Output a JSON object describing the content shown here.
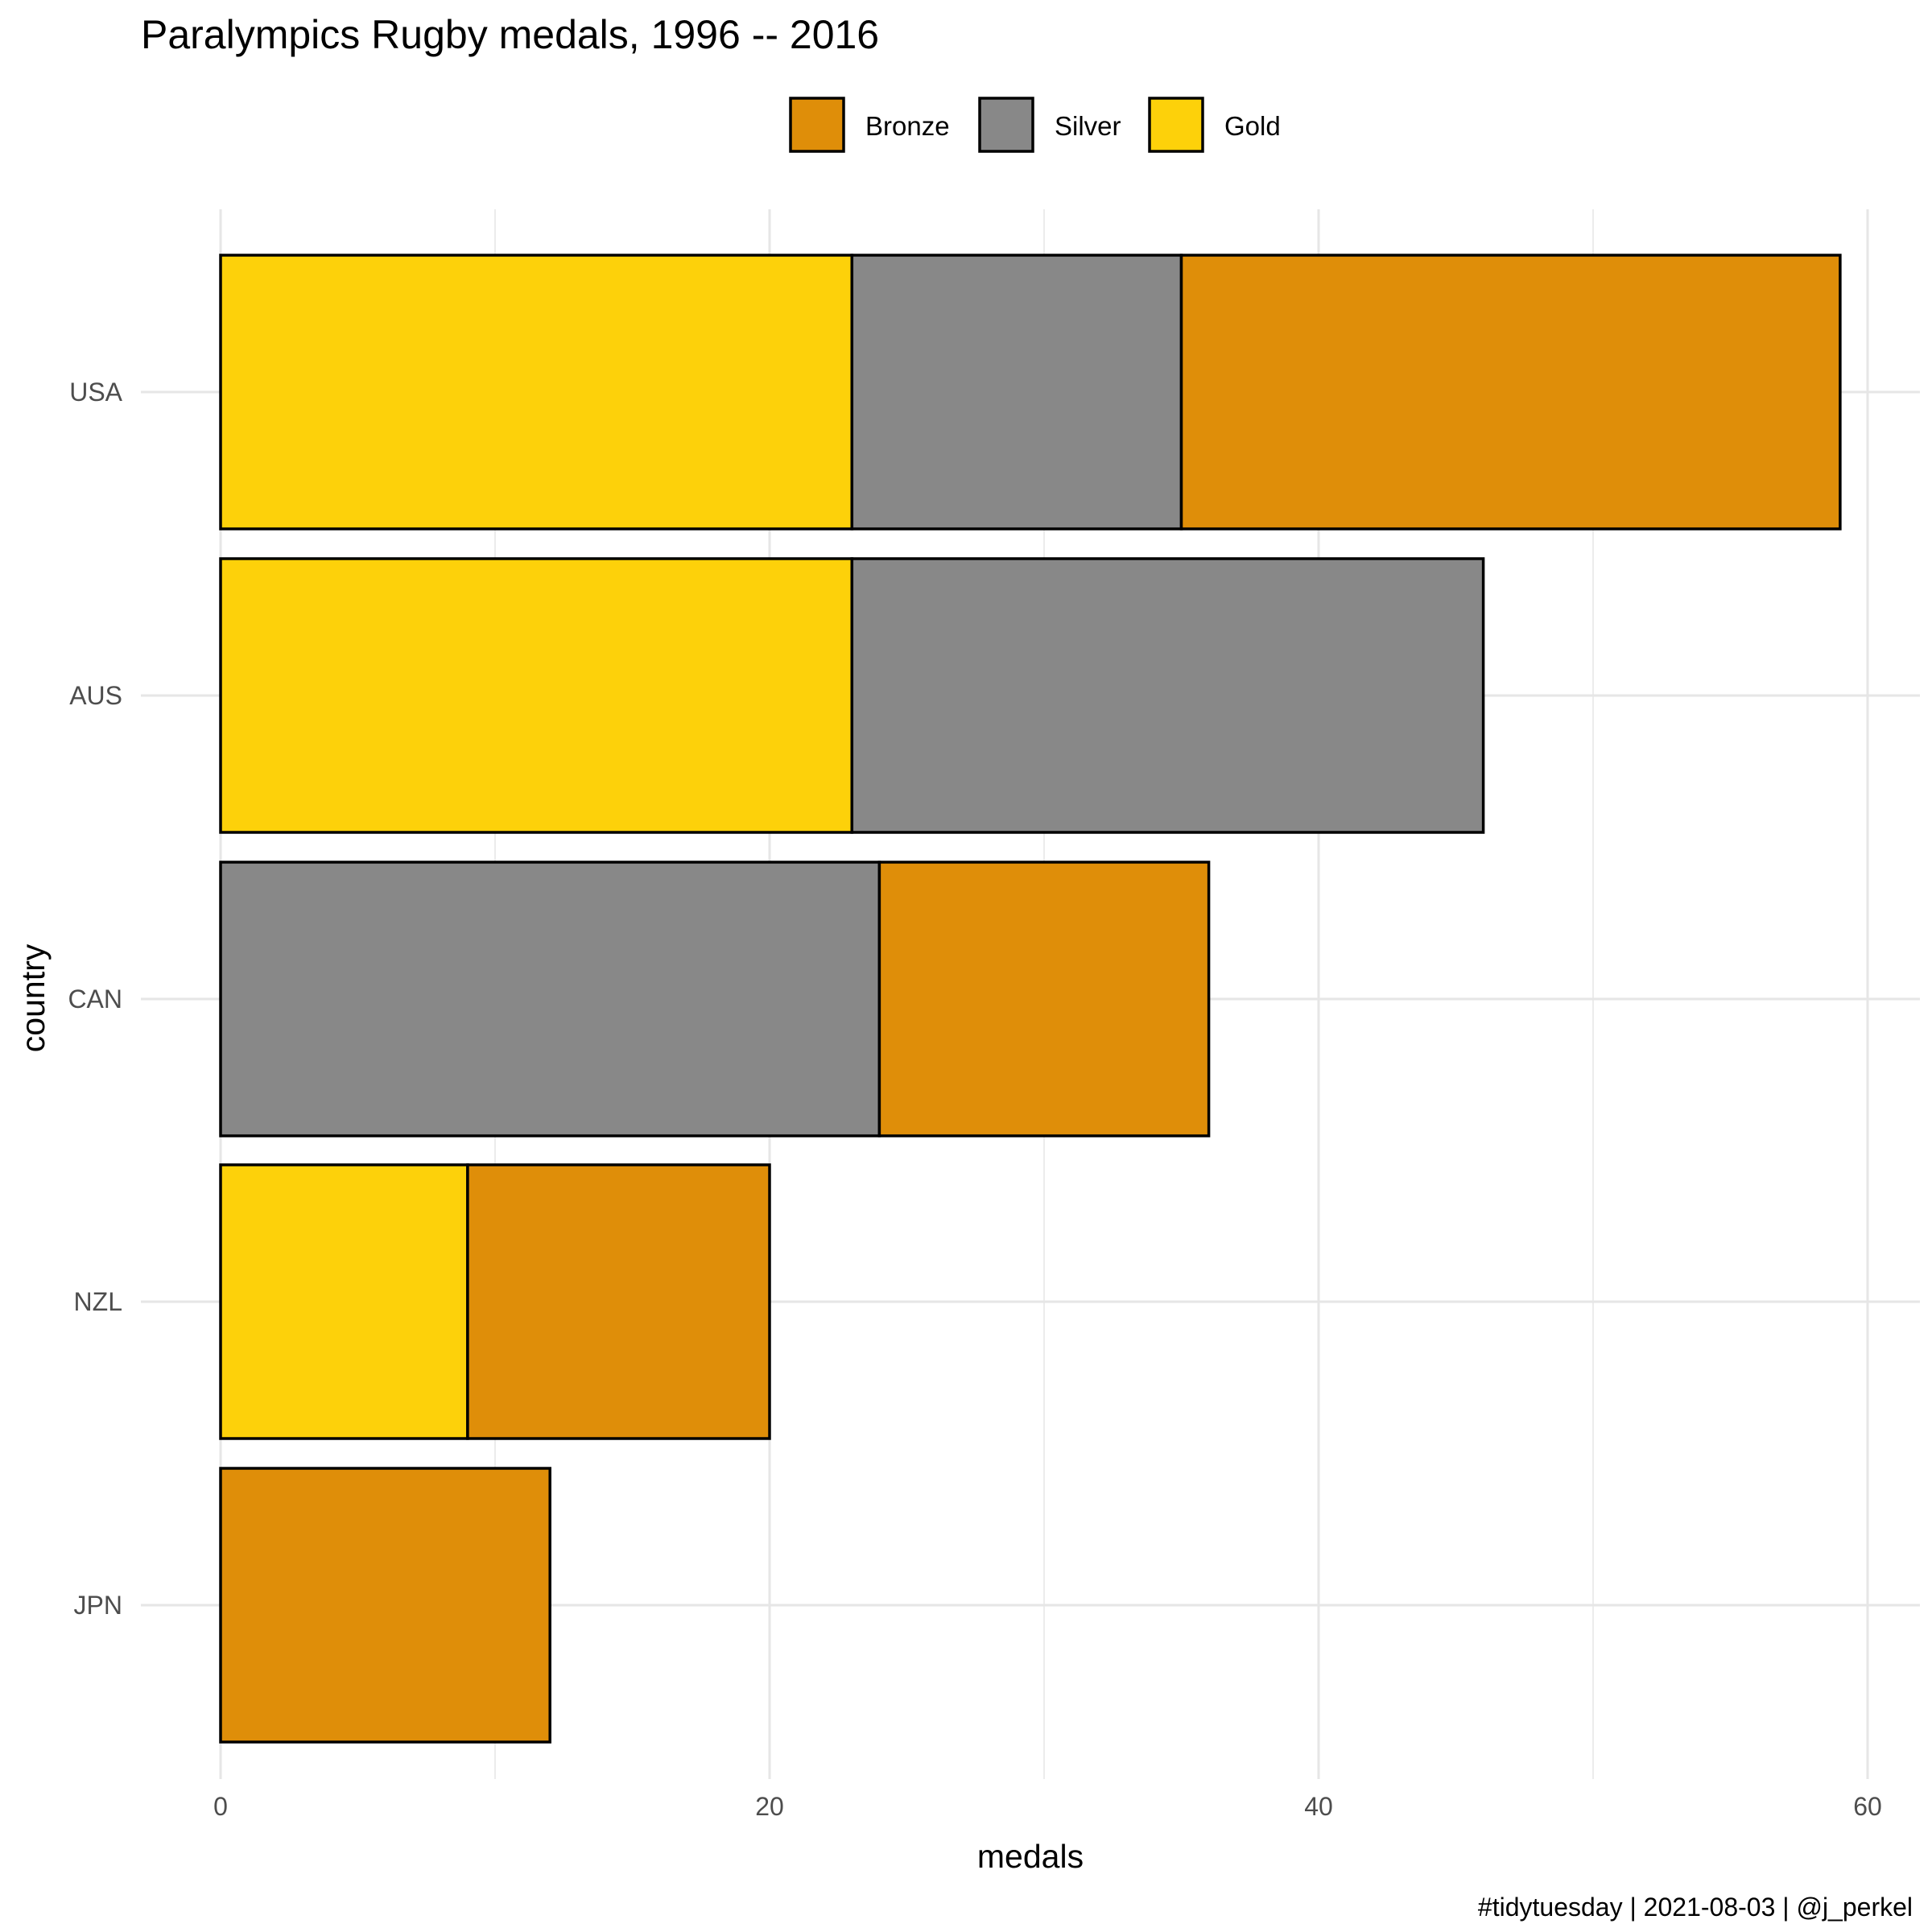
{
  "chart_data": {
    "type": "bar",
    "orientation": "horizontal",
    "stacked": true,
    "title": "Paralympics Rugby medals, 1996 -- 2016",
    "xlabel": "medals",
    "ylabel": "country",
    "caption": "#tidytuesday | 2021-08-03 | @j_perkel",
    "categories": [
      "USA",
      "AUS",
      "CAN",
      "NZL",
      "JPN"
    ],
    "series": [
      {
        "name": "Gold",
        "color": "#FDD10A",
        "values": [
          23,
          23,
          0,
          9,
          0
        ]
      },
      {
        "name": "Silver",
        "color": "#888888",
        "values": [
          12,
          23,
          24,
          0,
          0
        ]
      },
      {
        "name": "Bronze",
        "color": "#DF8E09",
        "values": [
          24,
          0,
          12,
          11,
          12
        ]
      }
    ],
    "legend_order": [
      "Bronze",
      "Silver",
      "Gold"
    ],
    "legend_position": "top",
    "xlim": [
      0,
      62
    ],
    "xticks": [
      0,
      20,
      40,
      60
    ],
    "grid": true
  }
}
